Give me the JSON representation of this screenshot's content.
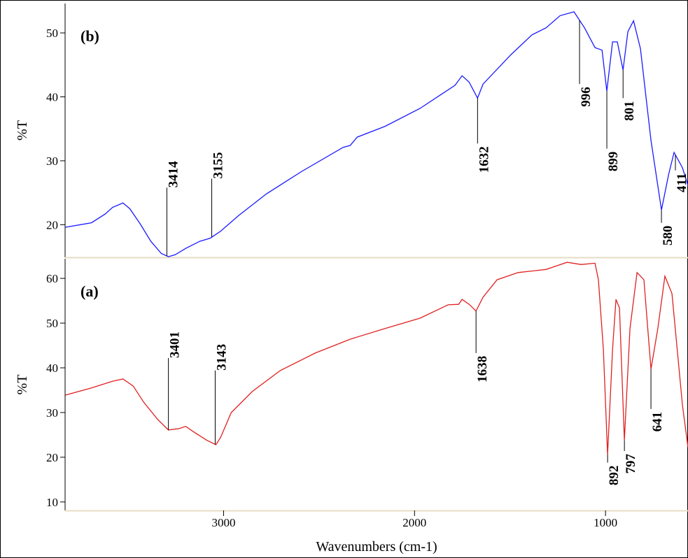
{
  "chart_data": [
    {
      "type": "line",
      "title": "(b)",
      "ylabel": "%T",
      "xlim": [
        3830,
        568
      ],
      "ylim": [
        14.9,
        54.6
      ],
      "yticks": [
        20,
        30,
        40,
        50
      ],
      "color": "#1a1aff",
      "x": [
        3828,
        3692,
        3619,
        3582,
        3527,
        3491,
        3436,
        3381,
        3326,
        3289,
        3253,
        3198,
        3125,
        3070,
        3015,
        2923,
        2777,
        2593,
        2374,
        2337,
        2300,
        2154,
        1971,
        1788,
        1751,
        1714,
        1670,
        1641,
        1495,
        1385,
        1311,
        1238,
        1165,
        1110,
        1055,
        1018,
        993,
        963,
        938,
        908,
        883,
        853,
        817,
        762,
        707,
        670,
        641,
        597,
        568
      ],
      "values": [
        19.6,
        20.3,
        21.7,
        22.7,
        23.4,
        22.5,
        20.1,
        17.4,
        15.5,
        15.0,
        15.3,
        16.3,
        17.4,
        17.9,
        19.0,
        21.4,
        24.8,
        28.3,
        32.1,
        32.4,
        33.7,
        35.4,
        38.2,
        41.8,
        43.3,
        42.3,
        39.8,
        42.0,
        46.6,
        49.7,
        50.8,
        52.7,
        53.3,
        50.8,
        47.7,
        47.3,
        40.9,
        48.6,
        48.6,
        44.2,
        50.2,
        51.9,
        47.5,
        33.2,
        22.3,
        27.8,
        31.3,
        28.9,
        26.1
      ],
      "annotations": [
        {
          "text": "3414",
          "x": 3297,
          "y": 25.8
        },
        {
          "text": "3155",
          "x": 3062,
          "y": 27.2
        },
        {
          "text": "1632",
          "x": 1670,
          "y": 32.7
        },
        {
          "text": "996",
          "x": 1136,
          "y": 42.0
        },
        {
          "text": "899",
          "x": 993,
          "y": 31.9
        },
        {
          "text": "801",
          "x": 908,
          "y": 39.8
        },
        {
          "text": "580",
          "x": 707,
          "y": 20.3
        },
        {
          "text": "411",
          "x": 634,
          "y": 28.5
        }
      ]
    },
    {
      "type": "line",
      "title": "(a)",
      "ylabel": "%T",
      "xlabel": "Wavenumbers (cm-1)",
      "xlim": [
        3830,
        568
      ],
      "ylim": [
        8.1,
        64.4
      ],
      "xticks": [
        3000,
        2000,
        1000
      ],
      "yticks": [
        10,
        20,
        30,
        40,
        50,
        60
      ],
      "color": "#e02020",
      "x": [
        3828,
        3692,
        3582,
        3527,
        3473,
        3418,
        3344,
        3289,
        3234,
        3198,
        3161,
        3088,
        3040,
        3015,
        2960,
        2850,
        2703,
        2520,
        2337,
        2154,
        1971,
        1824,
        1769,
        1751,
        1714,
        1678,
        1641,
        1568,
        1458,
        1311,
        1201,
        1128,
        1055,
        1037,
        1011,
        989,
        963,
        945,
        927,
        901,
        872,
        835,
        799,
        762,
        726,
        689,
        652,
        597,
        568
      ],
      "values": [
        33.9,
        35.5,
        37.0,
        37.5,
        35.9,
        32.3,
        28.4,
        26.1,
        26.4,
        26.9,
        25.8,
        23.8,
        22.8,
        24.5,
        30.0,
        34.7,
        39.4,
        43.3,
        46.4,
        48.8,
        51.1,
        54.1,
        54.2,
        55.3,
        54.2,
        52.7,
        55.8,
        59.7,
        61.3,
        62.0,
        63.6,
        63.1,
        63.4,
        59.7,
        44.1,
        20.6,
        44.1,
        55.3,
        53.4,
        23.8,
        48.8,
        61.3,
        59.7,
        39.7,
        48.8,
        60.5,
        56.6,
        31.6,
        22.2
      ],
      "annotations": [
        {
          "text": "3401",
          "x": 3289,
          "y": 42.2
        },
        {
          "text": "3143",
          "x": 3044,
          "y": 39.4
        },
        {
          "text": "1638",
          "x": 1678,
          "y": 43.3
        },
        {
          "text": "892",
          "x": 989,
          "y": 18.8
        },
        {
          "text": "797",
          "x": 901,
          "y": 21.4
        },
        {
          "text": "641",
          "x": 762,
          "y": 30.8
        }
      ]
    }
  ]
}
